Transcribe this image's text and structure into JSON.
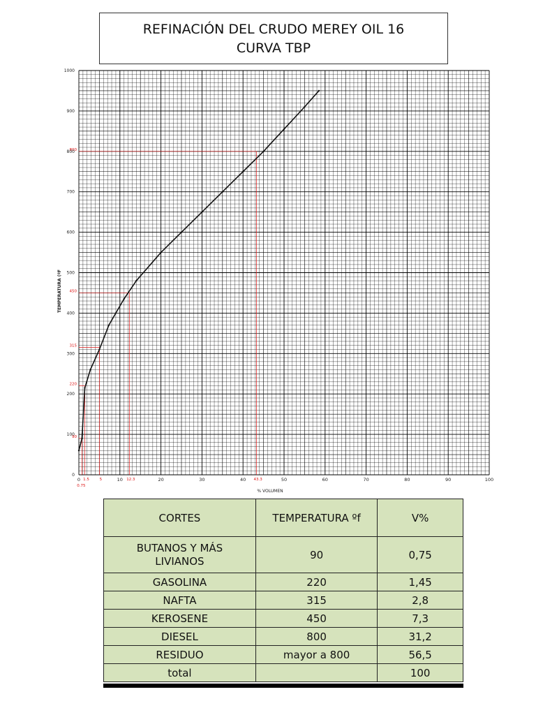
{
  "title": {
    "line1": "REFINACIÓN DEL CRUDO MEREY OIL 16",
    "line2": "CURVA TBP"
  },
  "chart_data": {
    "type": "line",
    "xlabel": "% VOLUMEN",
    "ylabel": "TEMPERATURA  (ºF",
    "xlim": [
      0,
      100
    ],
    "ylim": [
      0,
      1000
    ],
    "x_ticks": [
      "0",
      "10",
      "20",
      "30",
      "40",
      "50",
      "60",
      "70",
      "80",
      "90",
      "100"
    ],
    "y_ticks": [
      "0",
      "100",
      "200",
      "300",
      "400",
      "500",
      "600",
      "700",
      "800",
      "900",
      "1000"
    ],
    "grid": true,
    "series": [
      {
        "color": "#111111",
        "x": [
          0,
          0.75,
          1.45,
          2.8,
          5,
          7.3,
          9,
          11,
          14,
          20,
          25,
          30,
          35,
          40,
          45,
          50,
          55,
          58.5
        ],
        "y": [
          60,
          90,
          215,
          260,
          310,
          370,
          400,
          435,
          480,
          550,
          600,
          650,
          700,
          750,
          800,
          855,
          910,
          950
        ]
      }
    ],
    "reference_lines": [
      {
        "x": 0.75,
        "y": 90,
        "x_label": "0.75",
        "y_label": "90"
      },
      {
        "x": 1.45,
        "y": 220,
        "x_label": "1.5",
        "y_label": "220"
      },
      {
        "x": 5,
        "y": 315,
        "x_label": "5",
        "y_label": "315"
      },
      {
        "x": 12.3,
        "y": 450,
        "x_label": "12.3",
        "y_label": "450"
      },
      {
        "x": 43.3,
        "y": 800,
        "x_label": "43.3",
        "y_label": "800"
      }
    ],
    "reference_color": "#dd1111"
  },
  "table": {
    "headers": [
      "CORTES",
      "TEMPERATURA ºf",
      "V%"
    ],
    "rows": [
      [
        "BUTANOS Y MÁS LIVIANOS",
        "90",
        "0,75"
      ],
      [
        "GASOLINA",
        "220",
        "1,45"
      ],
      [
        "NAFTA",
        "315",
        "2,8"
      ],
      [
        "KEROSENE",
        "450",
        "7,3"
      ],
      [
        "DIESEL",
        "800",
        "31,2"
      ],
      [
        "RESIDUO",
        "mayor a 800",
        "56,5"
      ],
      [
        "total",
        "",
        "100"
      ]
    ]
  }
}
